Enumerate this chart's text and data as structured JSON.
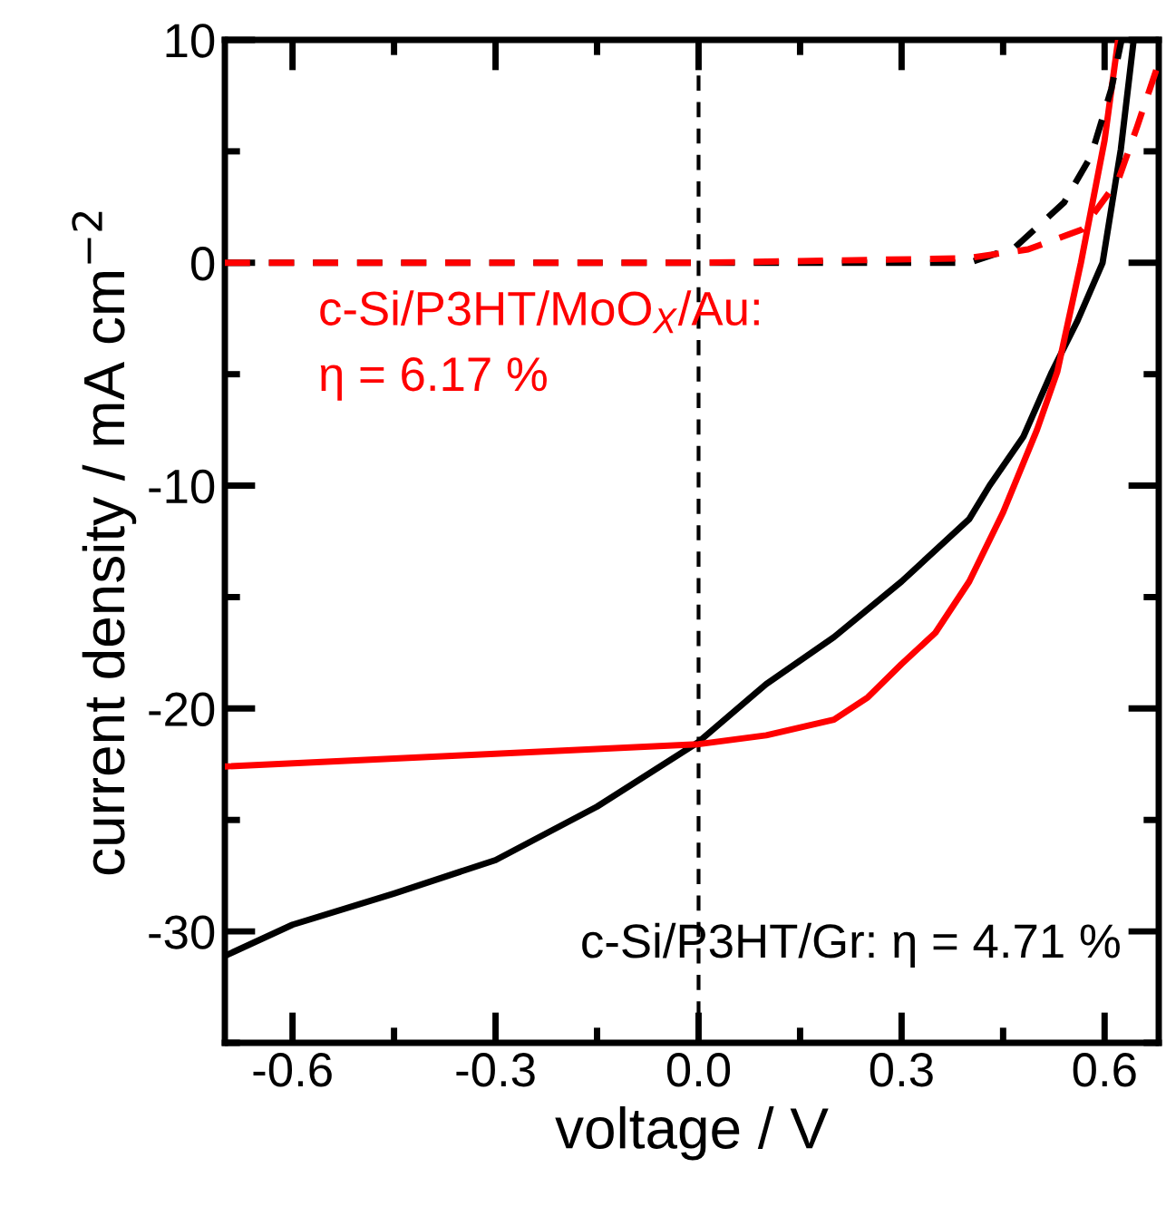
{
  "chart_data": {
    "type": "line",
    "xlabel": "voltage / V",
    "ylabel": "current density / mA cm$^{−2}$",
    "xlim": [
      -0.7,
      0.68
    ],
    "ylim": [
      -35,
      10
    ],
    "xticks": [
      -0.6,
      -0.3,
      {
        "value": 0.0,
        "label": "0.0"
      },
      0.3,
      0.6
    ],
    "yticks": [
      -30,
      -20,
      -10,
      0,
      10
    ],
    "grid": false,
    "marker": "none",
    "annotations": [
      "c-Si/P3HT/Gr: η = 4.71 %",
      "c-Si/P3HT/MoO$_{X}$/Au:\nη = 6.17 %"
    ],
    "ref_lines": [
      {
        "axis": "x",
        "value": 0,
        "color": "#000000",
        "line_style": "dashed"
      }
    ],
    "series": [
      {
        "color": "#000000",
        "line_style": "solid",
        "x": [
          -0.7,
          -0.6,
          -0.45,
          -0.3,
          -0.15,
          0.0,
          0.1,
          0.2,
          0.3,
          0.4,
          0.43,
          0.48,
          0.522,
          0.56,
          0.597,
          0.624,
          0.643
        ],
        "values": [
          -31.1,
          -29.7,
          -28.3,
          -26.8,
          -24.4,
          -21.5,
          -18.9,
          -16.8,
          -14.3,
          -11.5,
          -10,
          -7.8,
          -4.9,
          -2.6,
          0,
          5.1,
          10
        ]
      },
      {
        "color": "#ff0000",
        "line_style": "solid",
        "x": [
          -0.7,
          -0.35,
          0.0,
          0.1,
          0.2,
          0.25,
          0.3,
          0.35,
          0.4,
          0.45,
          0.5,
          0.53,
          0.565,
          0.6,
          0.62
        ],
        "values": [
          -22.6,
          -22.1,
          -21.6,
          -21.2,
          -20.5,
          -19.5,
          -18.0,
          -16.6,
          -14.3,
          -11.2,
          -7.5,
          -4.9,
          0,
          5.5,
          10
        ]
      },
      {
        "color": "#000000",
        "line_style": "dashed",
        "x": [
          -0.7,
          0.0,
          0.4,
          0.468,
          0.54,
          0.58,
          0.61,
          0.625
        ],
        "values": [
          0,
          0,
          0,
          0.7,
          2.7,
          4.8,
          7.8,
          10
        ]
      },
      {
        "color": "#ff0000",
        "line_style": "dashed",
        "x": [
          -0.7,
          0.0,
          0.395,
          0.487,
          0.567,
          0.62,
          0.648,
          0.678
        ],
        "values": [
          0,
          0,
          0.2,
          0.6,
          1.5,
          3.7,
          6.1,
          8.8
        ]
      }
    ]
  }
}
